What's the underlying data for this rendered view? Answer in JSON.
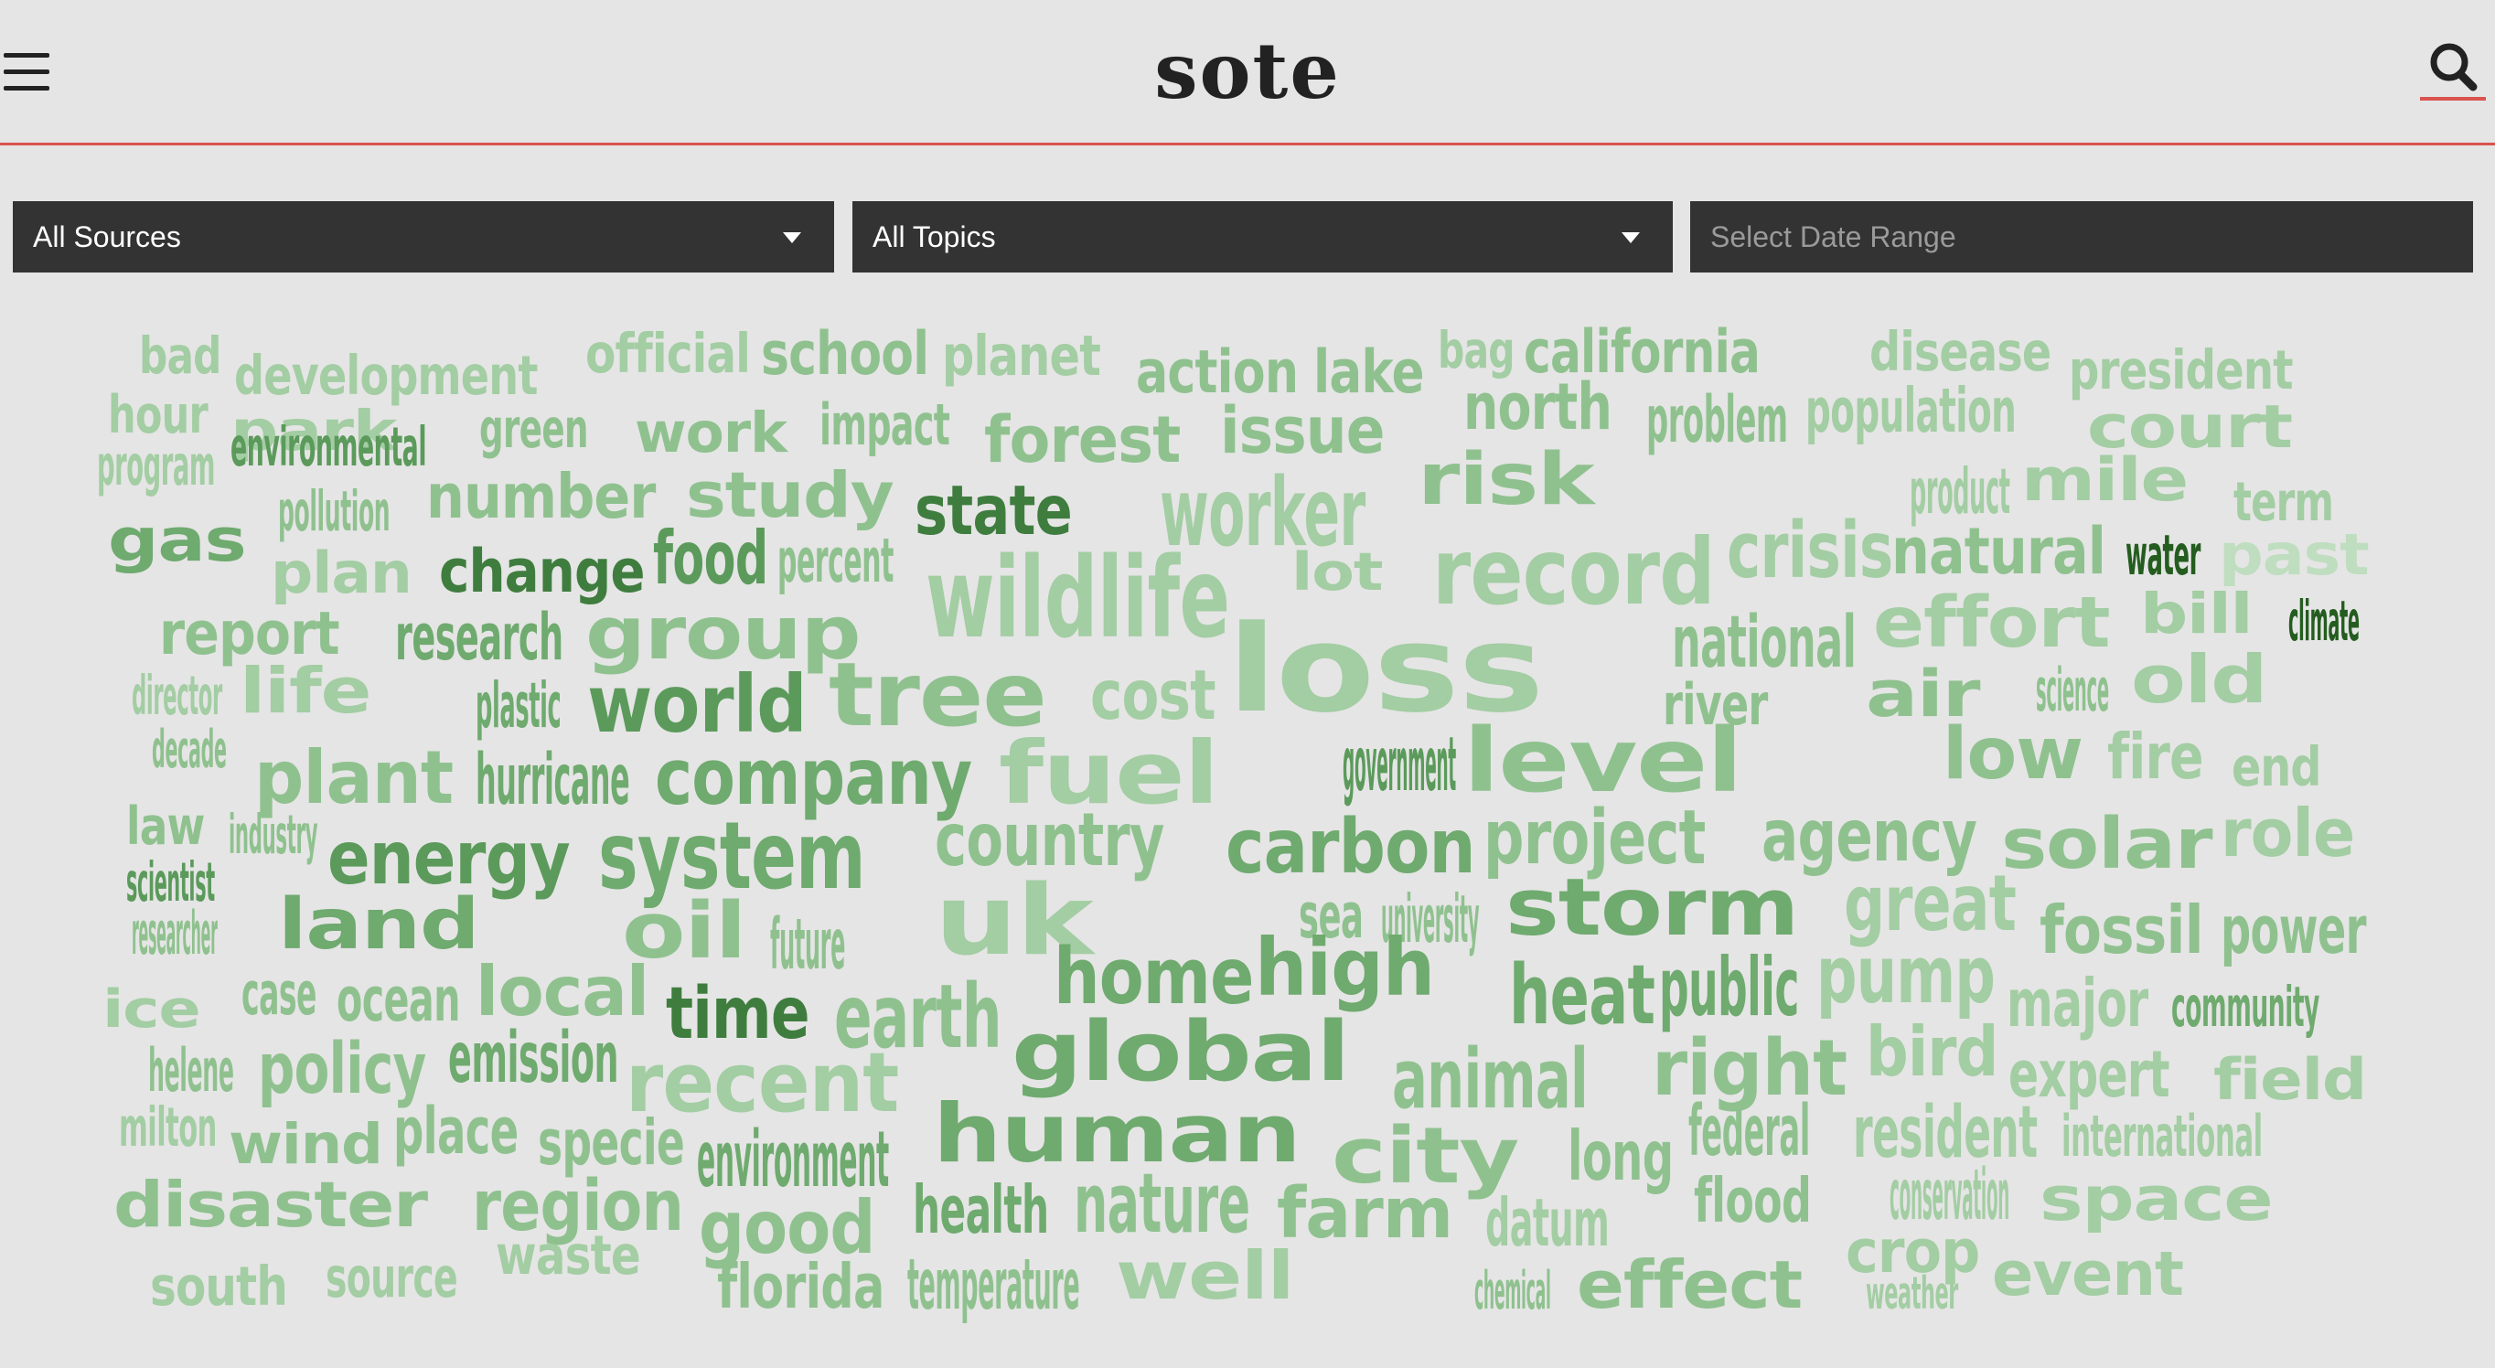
{
  "header": {
    "logo": "sote",
    "menu_icon": "hamburger-menu-icon",
    "search_icon": "magnifier-icon",
    "accent_color": "#d9534f"
  },
  "filters": {
    "sources": "All Sources",
    "topics": "All Topics",
    "date_placeholder": "Select Date Range"
  },
  "word_cloud": {
    "words": [
      {
        "text": "bad",
        "tier": 1
      },
      {
        "text": "development",
        "tier": 1
      },
      {
        "text": "official",
        "tier": 1
      },
      {
        "text": "school",
        "tier": 2
      },
      {
        "text": "planet",
        "tier": 1
      },
      {
        "text": "action",
        "tier": 2
      },
      {
        "text": "lake",
        "tier": 2
      },
      {
        "text": "bag",
        "tier": 1
      },
      {
        "text": "california",
        "tier": 2
      },
      {
        "text": "disease",
        "tier": 1
      },
      {
        "text": "president",
        "tier": 1
      },
      {
        "text": "hour",
        "tier": 1
      },
      {
        "text": "park",
        "tier": 1
      },
      {
        "text": "green",
        "tier": 2
      },
      {
        "text": "work",
        "tier": 2
      },
      {
        "text": "impact",
        "tier": 2
      },
      {
        "text": "forest",
        "tier": 2
      },
      {
        "text": "issue",
        "tier": 2
      },
      {
        "text": "north",
        "tier": 2
      },
      {
        "text": "problem",
        "tier": 2
      },
      {
        "text": "population",
        "tier": 1
      },
      {
        "text": "court",
        "tier": 1
      },
      {
        "text": "program",
        "tier": 1
      },
      {
        "text": "environmental",
        "tier": 4
      },
      {
        "text": "risk",
        "tier": 2
      },
      {
        "text": "product",
        "tier": 1
      },
      {
        "text": "mile",
        "tier": 1
      },
      {
        "text": "term",
        "tier": 1
      },
      {
        "text": "pollution",
        "tier": 2
      },
      {
        "text": "number",
        "tier": 2
      },
      {
        "text": "study",
        "tier": 2
      },
      {
        "text": "state",
        "tier": 5
      },
      {
        "text": "worker",
        "tier": 1
      },
      {
        "text": "gas",
        "tier": 3
      },
      {
        "text": "plan",
        "tier": 1
      },
      {
        "text": "change",
        "tier": 5
      },
      {
        "text": "food",
        "tier": 4
      },
      {
        "text": "percent",
        "tier": 2
      },
      {
        "text": "lot",
        "tier": 1
      },
      {
        "text": "record",
        "tier": 1
      },
      {
        "text": "crisis",
        "tier": 1
      },
      {
        "text": "natural",
        "tier": 2
      },
      {
        "text": "water",
        "tier": 7
      },
      {
        "text": "past",
        "tier": 0
      },
      {
        "text": "wildlife",
        "tier": 1
      },
      {
        "text": "report",
        "tier": 2
      },
      {
        "text": "research",
        "tier": 3
      },
      {
        "text": "group",
        "tier": 2
      },
      {
        "text": "national",
        "tier": 2
      },
      {
        "text": "effort",
        "tier": 1
      },
      {
        "text": "bill",
        "tier": 1
      },
      {
        "text": "climate",
        "tier": 7
      },
      {
        "text": "loss",
        "tier": 1
      },
      {
        "text": "director",
        "tier": 1
      },
      {
        "text": "life",
        "tier": 1
      },
      {
        "text": "plastic",
        "tier": 3
      },
      {
        "text": "world",
        "tier": 4
      },
      {
        "text": "tree",
        "tier": 2
      },
      {
        "text": "cost",
        "tier": 1
      },
      {
        "text": "river",
        "tier": 2
      },
      {
        "text": "air",
        "tier": 2
      },
      {
        "text": "science",
        "tier": 2
      },
      {
        "text": "old",
        "tier": 1
      },
      {
        "text": "decade",
        "tier": 2
      },
      {
        "text": "plant",
        "tier": 2
      },
      {
        "text": "hurricane",
        "tier": 3
      },
      {
        "text": "company",
        "tier": 3
      },
      {
        "text": "fuel",
        "tier": 1
      },
      {
        "text": "government",
        "tier": 4
      },
      {
        "text": "level",
        "tier": 2
      },
      {
        "text": "low",
        "tier": 2
      },
      {
        "text": "fire",
        "tier": 1
      },
      {
        "text": "end",
        "tier": 1
      },
      {
        "text": "law",
        "tier": 2
      },
      {
        "text": "industry",
        "tier": 2
      },
      {
        "text": "energy",
        "tier": 4
      },
      {
        "text": "system",
        "tier": 3
      },
      {
        "text": "country",
        "tier": 2
      },
      {
        "text": "carbon",
        "tier": 3
      },
      {
        "text": "project",
        "tier": 2
      },
      {
        "text": "agency",
        "tier": 2
      },
      {
        "text": "solar",
        "tier": 2
      },
      {
        "text": "role",
        "tier": 1
      },
      {
        "text": "scientist",
        "tier": 4
      },
      {
        "text": "uk",
        "tier": 1
      },
      {
        "text": "sea",
        "tier": 2
      },
      {
        "text": "university",
        "tier": 2
      },
      {
        "text": "storm",
        "tier": 3
      },
      {
        "text": "great",
        "tier": 1
      },
      {
        "text": "researcher",
        "tier": 2
      },
      {
        "text": "land",
        "tier": 3
      },
      {
        "text": "oil",
        "tier": 2
      },
      {
        "text": "future",
        "tier": 2
      },
      {
        "text": "fossil",
        "tier": 2
      },
      {
        "text": "power",
        "tier": 2
      },
      {
        "text": "home",
        "tier": 3
      },
      {
        "text": "high",
        "tier": 3
      },
      {
        "text": "heat",
        "tier": 3
      },
      {
        "text": "public",
        "tier": 3
      },
      {
        "text": "pump",
        "tier": 1
      },
      {
        "text": "ice",
        "tier": 1
      },
      {
        "text": "case",
        "tier": 2
      },
      {
        "text": "ocean",
        "tier": 2
      },
      {
        "text": "local",
        "tier": 2
      },
      {
        "text": "time",
        "tier": 5
      },
      {
        "text": "earth",
        "tier": 2
      },
      {
        "text": "major",
        "tier": 1
      },
      {
        "text": "community",
        "tier": 3
      },
      {
        "text": "global",
        "tier": 3
      },
      {
        "text": "animal",
        "tier": 2
      },
      {
        "text": "right",
        "tier": 2
      },
      {
        "text": "bird",
        "tier": 1
      },
      {
        "text": "helene",
        "tier": 2
      },
      {
        "text": "policy",
        "tier": 2
      },
      {
        "text": "emission",
        "tier": 3
      },
      {
        "text": "recent",
        "tier": 1
      },
      {
        "text": "expert",
        "tier": 1
      },
      {
        "text": "field",
        "tier": 1
      },
      {
        "text": "milton",
        "tier": 1
      },
      {
        "text": "wind",
        "tier": 2
      },
      {
        "text": "place",
        "tier": 2
      },
      {
        "text": "specie",
        "tier": 2
      },
      {
        "text": "environment",
        "tier": 3
      },
      {
        "text": "human",
        "tier": 3
      },
      {
        "text": "city",
        "tier": 2
      },
      {
        "text": "long",
        "tier": 2
      },
      {
        "text": "federal",
        "tier": 2
      },
      {
        "text": "resident",
        "tier": 1
      },
      {
        "text": "international",
        "tier": 1
      },
      {
        "text": "disaster",
        "tier": 2
      },
      {
        "text": "region",
        "tier": 2
      },
      {
        "text": "good",
        "tier": 2
      },
      {
        "text": "health",
        "tier": 3
      },
      {
        "text": "nature",
        "tier": 2
      },
      {
        "text": "farm",
        "tier": 2
      },
      {
        "text": "datum",
        "tier": 1
      },
      {
        "text": "flood",
        "tier": 2
      },
      {
        "text": "conservation",
        "tier": 1
      },
      {
        "text": "space",
        "tier": 1
      },
      {
        "text": "waste",
        "tier": 1
      },
      {
        "text": "south",
        "tier": 1
      },
      {
        "text": "source",
        "tier": 1
      },
      {
        "text": "florida",
        "tier": 2
      },
      {
        "text": "temperature",
        "tier": 2
      },
      {
        "text": "well",
        "tier": 1
      },
      {
        "text": "chemical",
        "tier": 2
      },
      {
        "text": "effect",
        "tier": 2
      },
      {
        "text": "crop",
        "tier": 1
      },
      {
        "text": "weather",
        "tier": 1
      },
      {
        "text": "event",
        "tier": 1
      }
    ],
    "tier_colors": [
      "#bfddbf",
      "#a3cda3",
      "#8fc18f",
      "#6faa6f",
      "#5b9a5b",
      "#3f7d3f",
      "#2e682e",
      "#245d1f"
    ]
  }
}
